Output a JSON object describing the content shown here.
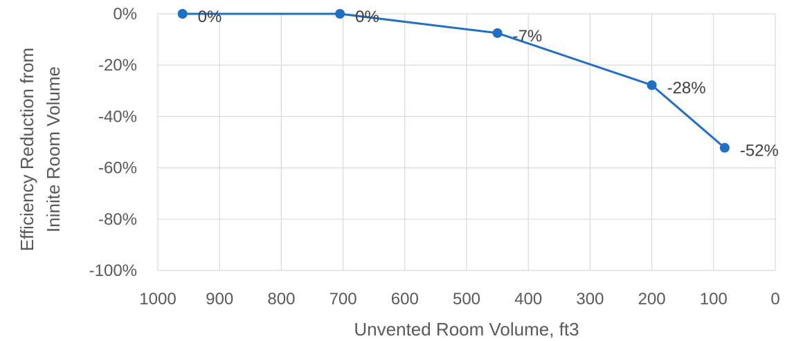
{
  "chart_data": {
    "type": "line",
    "xlabel": "Unvented Room Volume, ft3",
    "ylabel_lines": [
      "Efficiency Reduction from",
      "Ininite Room Volume"
    ],
    "x_reversed": true,
    "xlim": [
      0,
      1000
    ],
    "ylim": [
      -100,
      0
    ],
    "x_ticks": [
      1000,
      900,
      800,
      700,
      600,
      500,
      400,
      300,
      200,
      100,
      0
    ],
    "x_tick_labels": [
      "1000",
      "900",
      "800",
      "700",
      "600",
      "500",
      "400",
      "300",
      "200",
      "100",
      "0"
    ],
    "y_ticks": [
      0,
      -20,
      -40,
      -60,
      -80,
      -100
    ],
    "y_tick_labels": [
      "0%",
      "-20%",
      "-40%",
      "-60%",
      "-80%",
      "-100%"
    ],
    "grid": true,
    "series": [
      {
        "color": "#1f6fc5",
        "points": [
          {
            "x": 960,
            "y": 0,
            "label": "0%"
          },
          {
            "x": 705,
            "y": 0,
            "label": "0%"
          },
          {
            "x": 450,
            "y": -7.5,
            "label": "-7%"
          },
          {
            "x": 200,
            "y": -27.8,
            "label": "-28%"
          },
          {
            "x": 82,
            "y": -52.2,
            "label": "-52%"
          }
        ]
      }
    ]
  }
}
